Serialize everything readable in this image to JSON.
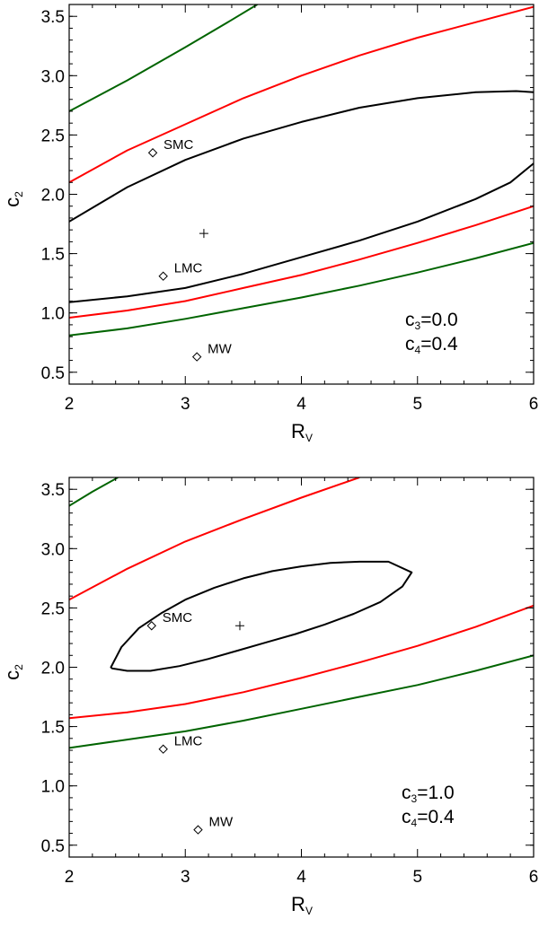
{
  "chart_data": [
    {
      "type": "line",
      "title": "",
      "xlabel": "R",
      "xlabel_sub": "V",
      "ylabel": "c",
      "ylabel_sub": "2",
      "xlim": [
        2,
        6
      ],
      "ylim": [
        0.4,
        3.6
      ],
      "xticks": [
        "2",
        "3",
        "4",
        "5",
        "6"
      ],
      "yticks": [
        "0.5",
        "1.0",
        "1.5",
        "2.0",
        "2.5",
        "3.0",
        "3.5"
      ],
      "annotations": [
        {
          "main": "c",
          "sub": "3",
          "value": "=0.0"
        },
        {
          "main": "c",
          "sub": "4",
          "value": "=0.4"
        }
      ],
      "points": [
        {
          "name": "SMC",
          "marker": "diamond",
          "x": 2.72,
          "y": 2.35
        },
        {
          "name": "LMC",
          "marker": "diamond",
          "x": 2.81,
          "y": 1.31
        },
        {
          "name": "MW",
          "marker": "diamond",
          "x": 3.1,
          "y": 0.63
        }
      ],
      "best_fit": {
        "marker": "plus",
        "x": 3.16,
        "y": 1.67
      },
      "series": [
        {
          "name": "green-upper",
          "color": "#006400",
          "x": [
            2.0,
            2.5,
            3.0,
            3.4,
            3.62
          ],
          "y": [
            2.7,
            2.96,
            3.24,
            3.47,
            3.6
          ]
        },
        {
          "name": "red-upper",
          "color": "#ff0000",
          "x": [
            2.0,
            2.5,
            3.0,
            3.5,
            4.0,
            4.5,
            5.0,
            5.5,
            6.0
          ],
          "y": [
            2.1,
            2.37,
            2.59,
            2.81,
            3.0,
            3.17,
            3.32,
            3.45,
            3.58
          ]
        },
        {
          "name": "black-upper",
          "color": "#000000",
          "x": [
            2.0,
            2.5,
            3.0,
            3.5,
            4.0,
            4.5,
            5.0,
            5.5,
            5.85,
            6.0
          ],
          "y": [
            1.77,
            2.06,
            2.29,
            2.47,
            2.61,
            2.73,
            2.81,
            2.86,
            2.87,
            2.86
          ]
        },
        {
          "name": "black-lower",
          "color": "#000000",
          "x": [
            2.0,
            2.5,
            3.0,
            3.5,
            4.0,
            4.5,
            5.0,
            5.5,
            5.8,
            6.0
          ],
          "y": [
            1.09,
            1.14,
            1.21,
            1.33,
            1.47,
            1.61,
            1.77,
            1.96,
            2.1,
            2.26
          ]
        },
        {
          "name": "red-lower",
          "color": "#ff0000",
          "x": [
            2.0,
            2.5,
            3.0,
            3.5,
            4.0,
            4.5,
            5.0,
            5.5,
            6.0
          ],
          "y": [
            0.96,
            1.02,
            1.1,
            1.21,
            1.32,
            1.45,
            1.59,
            1.74,
            1.9
          ]
        },
        {
          "name": "green-lower",
          "color": "#006400",
          "x": [
            2.0,
            2.5,
            3.0,
            3.5,
            4.0,
            4.5,
            5.0,
            5.5,
            6.0
          ],
          "y": [
            0.81,
            0.87,
            0.95,
            1.04,
            1.13,
            1.23,
            1.34,
            1.46,
            1.59
          ]
        }
      ]
    },
    {
      "type": "line",
      "title": "",
      "xlabel": "R",
      "xlabel_sub": "V",
      "ylabel": "c",
      "ylabel_sub": "2",
      "xlim": [
        2,
        6
      ],
      "ylim": [
        0.4,
        3.6
      ],
      "xticks": [
        "2",
        "3",
        "4",
        "5",
        "6"
      ],
      "yticks": [
        "0.5",
        "1.0",
        "1.5",
        "2.0",
        "2.5",
        "3.0",
        "3.5"
      ],
      "annotations": [
        {
          "main": "c",
          "sub": "3",
          "value": "=1.0"
        },
        {
          "main": "c",
          "sub": "4",
          "value": "=0.4"
        }
      ],
      "points": [
        {
          "name": "SMC",
          "marker": "diamond",
          "x": 2.71,
          "y": 2.35
        },
        {
          "name": "LMC",
          "marker": "diamond",
          "x": 2.81,
          "y": 1.31
        },
        {
          "name": "MW",
          "marker": "diamond",
          "x": 3.11,
          "y": 0.63
        }
      ],
      "best_fit": {
        "marker": "plus",
        "x": 3.47,
        "y": 2.35
      },
      "series": [
        {
          "name": "green-upper",
          "color": "#006400",
          "x": [
            2.0,
            2.2,
            2.42
          ],
          "y": [
            3.36,
            3.48,
            3.6
          ]
        },
        {
          "name": "red-upper",
          "color": "#ff0000",
          "x": [
            2.0,
            2.5,
            3.0,
            3.5,
            4.0,
            4.5
          ],
          "y": [
            2.57,
            2.83,
            3.06,
            3.25,
            3.43,
            3.6
          ]
        },
        {
          "name": "black-contour",
          "color": "#000000",
          "closed": true,
          "x": [
            2.36,
            2.45,
            2.6,
            2.8,
            3.0,
            3.25,
            3.5,
            3.75,
            4.0,
            4.25,
            4.5,
            4.75,
            4.95,
            4.87,
            4.68,
            4.45,
            4.2,
            3.95,
            3.7,
            3.45,
            3.2,
            2.95,
            2.7,
            2.5,
            2.37,
            2.36
          ],
          "y": [
            2.0,
            2.17,
            2.33,
            2.46,
            2.57,
            2.67,
            2.75,
            2.81,
            2.85,
            2.88,
            2.89,
            2.89,
            2.8,
            2.68,
            2.55,
            2.45,
            2.36,
            2.28,
            2.21,
            2.14,
            2.07,
            2.01,
            1.97,
            1.97,
            1.99,
            2.0
          ]
        },
        {
          "name": "red-lower",
          "color": "#ff0000",
          "x": [
            2.0,
            2.5,
            3.0,
            3.5,
            4.0,
            4.5,
            5.0,
            5.5,
            6.0
          ],
          "y": [
            1.57,
            1.62,
            1.69,
            1.79,
            1.91,
            2.04,
            2.18,
            2.34,
            2.52
          ]
        },
        {
          "name": "green-lower",
          "color": "#006400",
          "x": [
            2.0,
            2.5,
            3.0,
            3.5,
            4.0,
            4.5,
            5.0,
            5.5,
            6.0
          ],
          "y": [
            1.32,
            1.39,
            1.46,
            1.55,
            1.65,
            1.75,
            1.85,
            1.97,
            2.1
          ]
        }
      ]
    }
  ]
}
